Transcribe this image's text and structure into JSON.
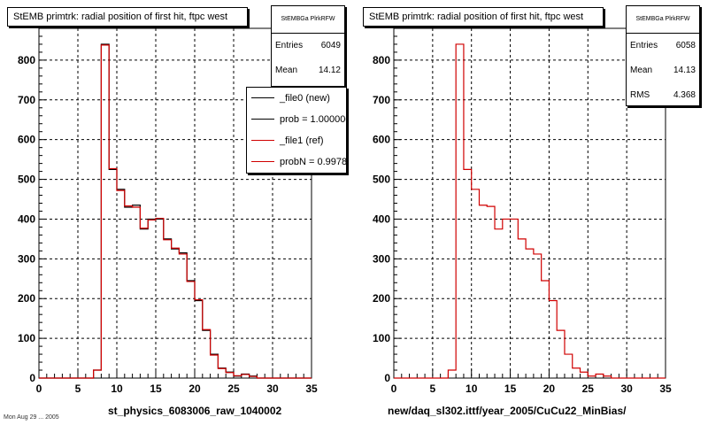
{
  "chart_data": [
    {
      "type": "histogram",
      "title": "StEMB primtrk: radial position of first hit, ftpc west",
      "xlabel": "st_physics_6083006_raw_1040002",
      "xlim": [
        0,
        35
      ],
      "ylim": [
        0,
        880
      ],
      "xticks": [
        0,
        5,
        10,
        15,
        20,
        25,
        30,
        35
      ],
      "yticks": [
        0,
        100,
        200,
        300,
        400,
        500,
        600,
        700,
        800
      ],
      "grid": true,
      "bin_width": 1,
      "bin_start": 7,
      "stats": {
        "name": "StEMBGa PlrkRFW",
        "entries_label": "Entries",
        "entries": "6049",
        "mean_label": "Mean",
        "mean": "14.12"
      },
      "legend": {
        "position": "top-right",
        "entries": [
          {
            "label": "_file0 (new)",
            "color": "#000000"
          },
          {
            "label": "prob = 1.000000",
            "color": "#000000"
          },
          {
            "label": "_file1 (ref)",
            "color": "#d00000"
          },
          {
            "label": "probN = 0.997828",
            "color": "#d00000"
          }
        ]
      },
      "series": [
        {
          "name": "_file0 (new)",
          "color": "#000000",
          "values": [
            20,
            840,
            525,
            475,
            430,
            435,
            375,
            400,
            400,
            350,
            325,
            315,
            245,
            195,
            120,
            60,
            25,
            15,
            5,
            10,
            5
          ]
        },
        {
          "name": "_file1 (ref)",
          "color": "#d00000",
          "values": [
            20,
            838,
            527,
            472,
            433,
            430,
            377,
            398,
            402,
            348,
            327,
            312,
            243,
            197,
            122,
            58,
            24,
            14,
            6,
            9,
            4
          ]
        }
      ]
    },
    {
      "type": "histogram",
      "title": "StEMB primtrk: radial position of first hit, ftpc west",
      "xlabel": "new/daq_sl302.ittf/year_2005/CuCu22_MinBias/",
      "xlim": [
        0,
        35
      ],
      "ylim": [
        0,
        880
      ],
      "xticks": [
        0,
        5,
        10,
        15,
        20,
        25,
        30,
        35
      ],
      "yticks": [
        0,
        100,
        200,
        300,
        400,
        500,
        600,
        700,
        800
      ],
      "grid": true,
      "bin_width": 1,
      "bin_start": 7,
      "stats": {
        "name": "StEMBGa PlrkRFW",
        "entries_label": "Entries",
        "entries": "6058",
        "mean_label": "Mean",
        "mean": "14.13",
        "rms_label": "RMS",
        "rms": "4.368"
      },
      "series": [
        {
          "name": "",
          "color": "#d00000",
          "values": [
            20,
            840,
            525,
            475,
            435,
            432,
            375,
            400,
            400,
            350,
            325,
            312,
            245,
            195,
            120,
            60,
            25,
            15,
            5,
            10,
            5
          ]
        }
      ]
    }
  ],
  "footer": "Mon Aug 29 ... 2005"
}
